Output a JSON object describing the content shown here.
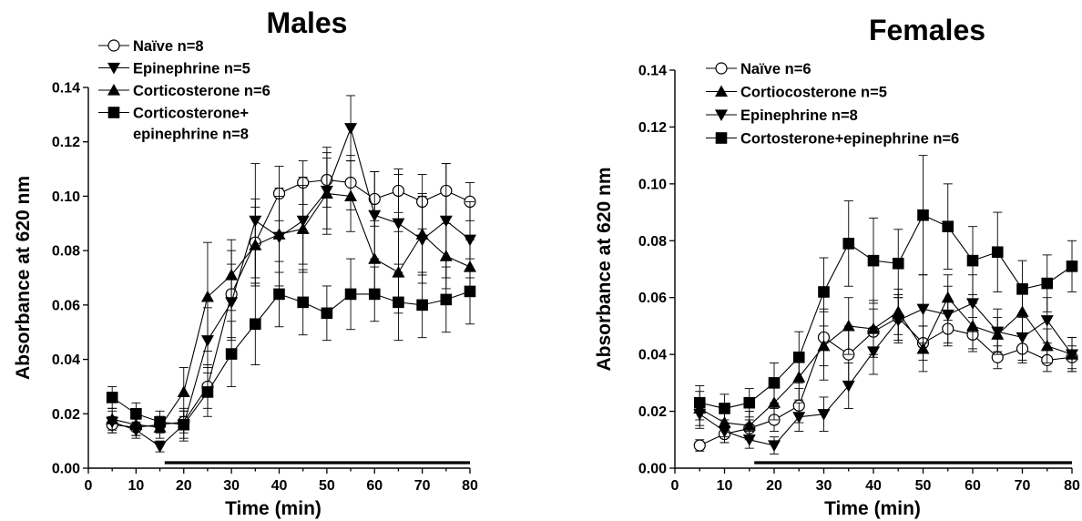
{
  "chart_data": [
    {
      "type": "line",
      "title": "Males",
      "xlabel": "Time (min)",
      "ylabel": "Absorbance at 620 nm",
      "xlim": [
        0,
        80
      ],
      "ylim": [
        0,
        0.14
      ],
      "xticks": [
        0,
        10,
        20,
        30,
        40,
        50,
        60,
        70,
        80
      ],
      "yticks": [
        "0.00",
        "0.02",
        "0.04",
        "0.06",
        "0.08",
        "0.10",
        "0.12",
        "0.14"
      ],
      "legend_position": "top-left",
      "grid": false,
      "horizontal_bar": [
        16,
        80
      ],
      "x": [
        5,
        10,
        15,
        20,
        25,
        30,
        35,
        40,
        45,
        50,
        55,
        60,
        65,
        70,
        75,
        80
      ],
      "series": [
        {
          "name": "Naïve n=8",
          "legend_lines": [
            "Naïve n=8"
          ],
          "marker": "circle-open",
          "values": [
            0.016,
            0.015,
            0.016,
            0.017,
            0.03,
            0.064,
            0.083,
            0.101,
            0.105,
            0.106,
            0.105,
            0.099,
            0.102,
            0.098,
            0.102,
            0.098
          ],
          "errors": [
            0.003,
            0.003,
            0.003,
            0.004,
            0.008,
            0.016,
            0.016,
            0.01,
            0.008,
            0.01,
            0.01,
            0.01,
            0.008,
            0.01,
            0.01,
            0.007
          ]
        },
        {
          "name": "Epinephrine n=5",
          "legend_lines": [
            "Epinephrine n=5"
          ],
          "marker": "triangle-down",
          "values": [
            0.017,
            0.014,
            0.008,
            0.016,
            0.047,
            0.061,
            0.091,
            0.085,
            0.091,
            0.102,
            0.125,
            0.093,
            0.09,
            0.084,
            0.091,
            0.084
          ],
          "errors": [
            0.004,
            0.003,
            0.002,
            0.005,
            0.012,
            0.014,
            0.021,
            0.018,
            0.016,
            0.016,
            0.012,
            0.016,
            0.018,
            0.016,
            0.021,
            0.014
          ]
        },
        {
          "name": "Corticosterone n=6",
          "legend_lines": [
            "Corticosterone n=6"
          ],
          "marker": "triangle-up",
          "values": [
            0.018,
            0.016,
            0.015,
            0.028,
            0.063,
            0.071,
            0.082,
            0.086,
            0.088,
            0.101,
            0.1,
            0.077,
            0.072,
            0.086,
            0.078,
            0.074
          ],
          "errors": [
            0.004,
            0.004,
            0.004,
            0.009,
            0.02,
            0.013,
            0.014,
            0.014,
            0.016,
            0.013,
            0.013,
            0.014,
            0.015,
            0.015,
            0.012,
            0.01
          ]
        },
        {
          "name": "Corticosterone+ epinephrine n=8",
          "legend_lines": [
            "Corticosterone+",
            "epinephrine n=8"
          ],
          "marker": "square",
          "values": [
            0.026,
            0.02,
            0.017,
            0.016,
            0.028,
            0.042,
            0.053,
            0.064,
            0.061,
            0.057,
            0.064,
            0.064,
            0.061,
            0.06,
            0.062,
            0.065
          ],
          "errors": [
            0.004,
            0.004,
            0.004,
            0.006,
            0.009,
            0.012,
            0.015,
            0.012,
            0.012,
            0.01,
            0.013,
            0.01,
            0.014,
            0.012,
            0.012,
            0.012
          ]
        }
      ]
    },
    {
      "type": "line",
      "title": "Females",
      "xlabel": "Time (min)",
      "ylabel": "Absorbance at 620 nm",
      "xlim": [
        0,
        80
      ],
      "ylim": [
        0,
        0.14
      ],
      "xticks": [
        0,
        10,
        20,
        30,
        40,
        50,
        60,
        70,
        80
      ],
      "yticks": [
        "0.00",
        "0.02",
        "0.04",
        "0.06",
        "0.08",
        "0.10",
        "0.12",
        "0.14"
      ],
      "legend_position": "top-left",
      "grid": false,
      "horizontal_bar": [
        16,
        80
      ],
      "x": [
        5,
        10,
        15,
        20,
        25,
        30,
        35,
        40,
        45,
        50,
        55,
        60,
        65,
        70,
        75,
        80
      ],
      "series": [
        {
          "name": "Naïve n=6",
          "legend_lines": [
            "Naïve n=6"
          ],
          "marker": "circle-open",
          "values": [
            0.008,
            0.012,
            0.014,
            0.017,
            0.022,
            0.046,
            0.04,
            0.048,
            0.053,
            0.044,
            0.049,
            0.047,
            0.039,
            0.042,
            0.038,
            0.039
          ],
          "errors": [
            0.002,
            0.003,
            0.003,
            0.004,
            0.006,
            0.01,
            0.01,
            0.008,
            0.008,
            0.006,
            0.006,
            0.006,
            0.004,
            0.005,
            0.004,
            0.004
          ]
        },
        {
          "name": "Cortiocosterone n=5",
          "legend_lines": [
            "Cortiocosterone n=5"
          ],
          "marker": "triangle-up",
          "values": [
            0.021,
            0.016,
            0.015,
            0.023,
            0.032,
            0.043,
            0.05,
            0.049,
            0.055,
            0.042,
            0.06,
            0.05,
            0.047,
            0.055,
            0.043,
            0.04
          ],
          "errors": [
            0.006,
            0.005,
            0.005,
            0.006,
            0.008,
            0.012,
            0.01,
            0.01,
            0.008,
            0.008,
            0.008,
            0.008,
            0.006,
            0.008,
            0.006,
            0.006
          ]
        },
        {
          "name": "Epinephrine n=8",
          "legend_lines": [
            "Epinephrine n=8"
          ],
          "marker": "triangle-down",
          "values": [
            0.019,
            0.013,
            0.01,
            0.008,
            0.018,
            0.019,
            0.029,
            0.041,
            0.052,
            0.056,
            0.054,
            0.058,
            0.048,
            0.046,
            0.052,
            0.04
          ],
          "errors": [
            0.005,
            0.004,
            0.003,
            0.003,
            0.005,
            0.006,
            0.008,
            0.008,
            0.008,
            0.012,
            0.01,
            0.01,
            0.008,
            0.008,
            0.008,
            0.006
          ]
        },
        {
          "name": "Cortosterone+epinephrine n=6",
          "legend_lines": [
            "Cortosterone+epinephrine n=6"
          ],
          "marker": "square",
          "values": [
            0.023,
            0.021,
            0.023,
            0.03,
            0.039,
            0.062,
            0.079,
            0.073,
            0.072,
            0.089,
            0.085,
            0.073,
            0.076,
            0.063,
            0.065,
            0.071
          ],
          "errors": [
            0.006,
            0.005,
            0.005,
            0.007,
            0.009,
            0.012,
            0.015,
            0.015,
            0.012,
            0.021,
            0.015,
            0.012,
            0.014,
            0.01,
            0.01,
            0.009
          ]
        }
      ]
    }
  ]
}
